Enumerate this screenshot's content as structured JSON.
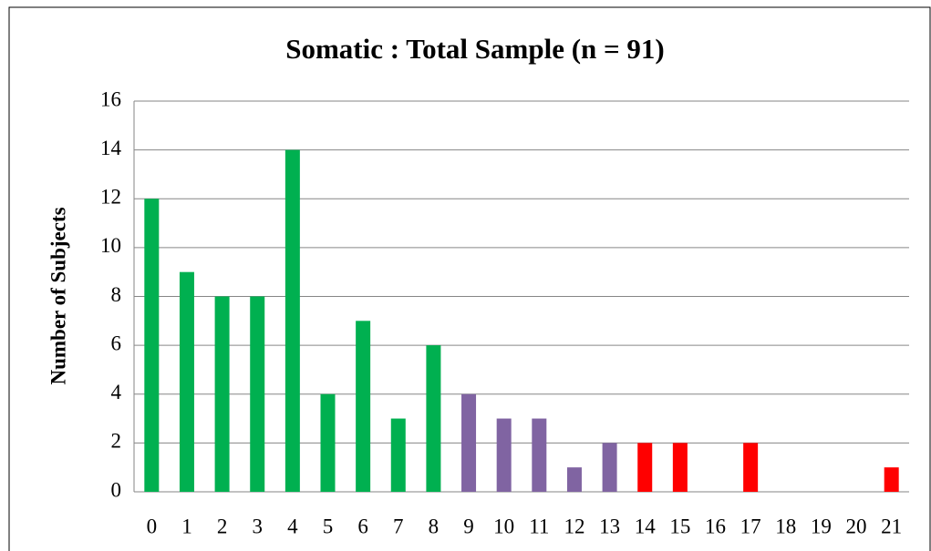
{
  "chart_data": {
    "type": "bar",
    "title": "Somatic : Total Sample (n = 91)",
    "y_label": "Number of Subjects",
    "categories": [
      "0",
      "1",
      "2",
      "3",
      "4",
      "5",
      "6",
      "7",
      "8",
      "9",
      "10",
      "11",
      "12",
      "13",
      "14",
      "15",
      "16",
      "17",
      "18",
      "19",
      "20",
      "21"
    ],
    "values": [
      12,
      9,
      8,
      8,
      14,
      4,
      7,
      3,
      6,
      4,
      3,
      3,
      1,
      2,
      2,
      2,
      0,
      2,
      0,
      0,
      0,
      1
    ],
    "colors": [
      "#00b050",
      "#00b050",
      "#00b050",
      "#00b050",
      "#00b050",
      "#00b050",
      "#00b050",
      "#00b050",
      "#00b050",
      "#8064a2",
      "#8064a2",
      "#8064a2",
      "#8064a2",
      "#8064a2",
      "#ff0000",
      "#ff0000",
      "#ff0000",
      "#ff0000",
      "#ff0000",
      "#ff0000",
      "#ff0000",
      "#ff0000"
    ],
    "ylim": [
      0,
      16
    ],
    "yticks": [
      0,
      2,
      4,
      6,
      8,
      10,
      12,
      14,
      16
    ],
    "grid": true
  }
}
